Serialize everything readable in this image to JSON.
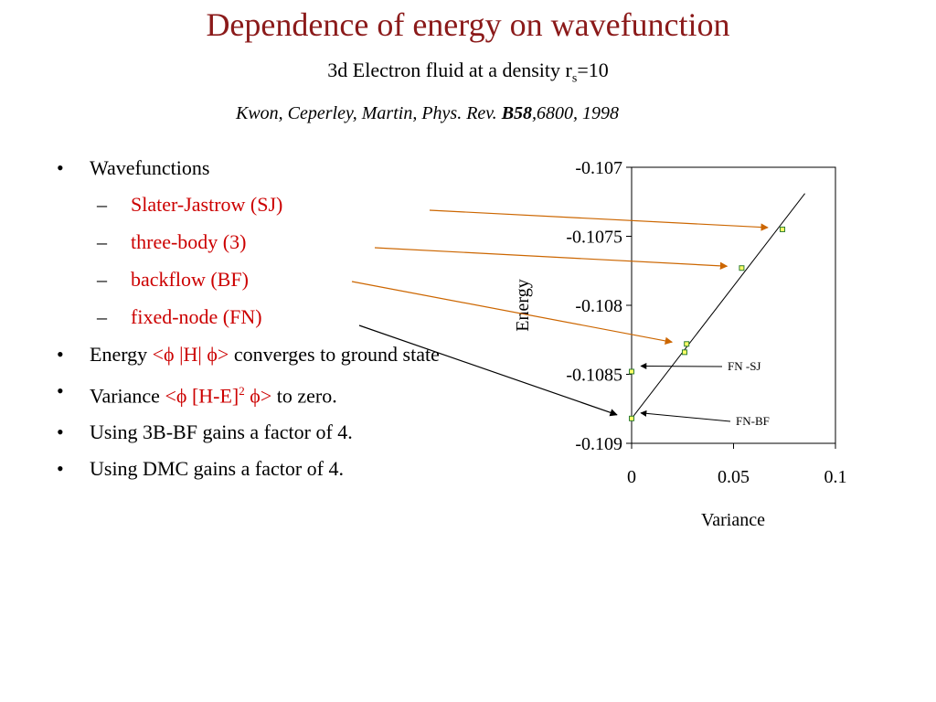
{
  "slide": {
    "title": "Dependence of energy on wavefunction",
    "subtitle_main": "3d Electron fluid at a density r",
    "subtitle_sub": "s",
    "subtitle_end": "=10",
    "citation_pre": "Kwon, Ceperley, Martin, Phys. Rev. ",
    "citation_vol": "B58",
    "citation_post": ",6800, 1998"
  },
  "bullets": {
    "wavefunctions": "Wavefunctions",
    "sub_items": [
      "Slater-Jastrow (SJ)",
      "three-body (3)",
      "backflow (BF)",
      "fixed-node (FN)"
    ],
    "energy_pre": "Energy ",
    "energy_expr": "<ϕ |H| ϕ>",
    "energy_post": " converges to ground state",
    "variance_pre": "Variance ",
    "variance_expr": "<ϕ [H-E]",
    "variance_sup": "2",
    "variance_expr2": " ϕ>",
    "variance_post": " to zero.",
    "gain1": "Using 3B-BF gains a factor of 4.",
    "gain2": "Using DMC gains a factor of 4."
  },
  "chart_data": {
    "type": "scatter",
    "title": "",
    "xlabel": "Variance",
    "ylabel": "Energy",
    "xlim": [
      0,
      0.1
    ],
    "ylim": [
      -0.109,
      -0.107
    ],
    "xticks": [
      "0",
      "0.05",
      "0.1"
    ],
    "xtick_values": [
      0,
      0.05,
      0.1
    ],
    "yticks": [
      "-0.107",
      "-0.1075",
      "-0.108",
      "-0.1085",
      "-0.109"
    ],
    "ytick_values": [
      -0.107,
      -0.1075,
      -0.108,
      -0.1085,
      -0.109
    ],
    "points": [
      {
        "x": 0.074,
        "y": -0.10745
      },
      {
        "x": 0.054,
        "y": -0.10773
      },
      {
        "x": 0.027,
        "y": -0.10828
      },
      {
        "x": 0.026,
        "y": -0.10834
      },
      {
        "x": 0.0,
        "y": -0.10848
      },
      {
        "x": 0.0,
        "y": -0.10882
      }
    ],
    "fit_line": {
      "x": [
        0.0,
        0.085
      ],
      "y": [
        -0.10882,
        -0.10719
      ]
    },
    "annotations": [
      {
        "text": "FN -SJ",
        "target": {
          "x": 0.0,
          "y": -0.10844
        }
      },
      {
        "text": "FN-BF",
        "target": {
          "x": 0.0,
          "y": -0.10878
        }
      }
    ],
    "marker_fill": "#ffff66",
    "marker_stroke": "#2e7d32",
    "arrow_color_orange": "#cc6600",
    "arrow_color_black": "#000000",
    "grid": false
  }
}
